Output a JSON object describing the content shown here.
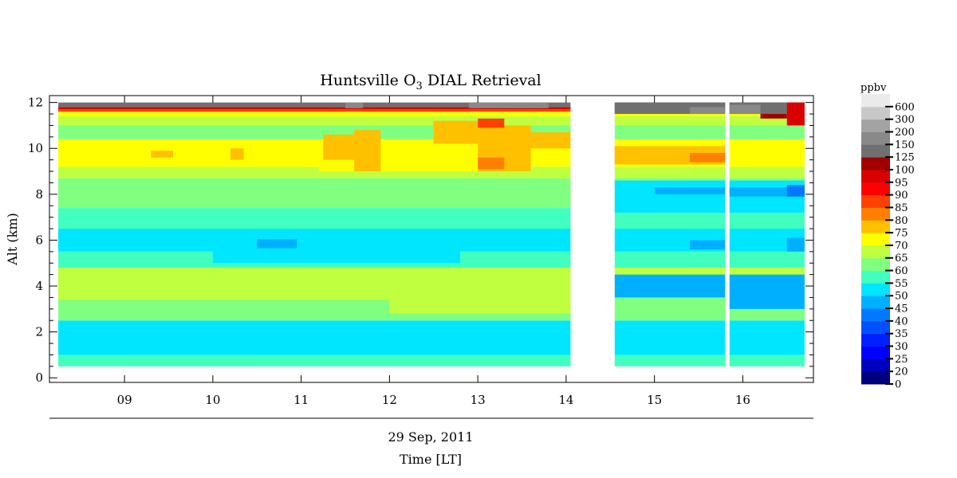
{
  "chart_data": {
    "type": "heatmap",
    "title": {
      "prefix": "Huntsville O",
      "subscript": "3",
      "suffix": " DIAL Retrieval"
    },
    "ylabel": "Alt (km)",
    "xlabel_date": "29 Sep, 2011",
    "xlabel": "Time [LT]",
    "colorbar_unit": "ppbv",
    "xlim": [
      8.15,
      16.8
    ],
    "ylim": [
      -0.2,
      12.3
    ],
    "x_ticks": [
      {
        "value": 9,
        "label": "09"
      },
      {
        "value": 10,
        "label": "10"
      },
      {
        "value": 11,
        "label": "11"
      },
      {
        "value": 12,
        "label": "12"
      },
      {
        "value": 13,
        "label": "13"
      },
      {
        "value": 14,
        "label": "14"
      },
      {
        "value": 15,
        "label": "15"
      },
      {
        "value": 16,
        "label": "16"
      }
    ],
    "y_ticks": [
      {
        "value": 0,
        "label": "0"
      },
      {
        "value": 2,
        "label": "2"
      },
      {
        "value": 4,
        "label": "4"
      },
      {
        "value": 6,
        "label": "6"
      },
      {
        "value": 8,
        "label": "8"
      },
      {
        "value": 10,
        "label": "10"
      },
      {
        "value": 12,
        "label": "12"
      }
    ],
    "colorbar": [
      {
        "level": "0",
        "color": "#00007f"
      },
      {
        "level": "20",
        "color": "#0000bf"
      },
      {
        "level": "25",
        "color": "#0000ff"
      },
      {
        "level": "30",
        "color": "#0020ff"
      },
      {
        "level": "35",
        "color": "#0050ff"
      },
      {
        "level": "40",
        "color": "#0078ff"
      },
      {
        "level": "45",
        "color": "#00b0ff"
      },
      {
        "level": "50",
        "color": "#00e6ff"
      },
      {
        "level": "55",
        "color": "#40ffbf"
      },
      {
        "level": "60",
        "color": "#80ff80"
      },
      {
        "level": "65",
        "color": "#bfff40"
      },
      {
        "level": "70",
        "color": "#ffff00"
      },
      {
        "level": "75",
        "color": "#ffc000"
      },
      {
        "level": "80",
        "color": "#ff8000"
      },
      {
        "level": "85",
        "color": "#ff4000"
      },
      {
        "level": "90",
        "color": "#ff0000"
      },
      {
        "level": "95",
        "color": "#d90000"
      },
      {
        "level": "100",
        "color": "#a00000"
      },
      {
        "level": "125",
        "color": "#707070"
      },
      {
        "level": "150",
        "color": "#898989"
      },
      {
        "level": "200",
        "color": "#a3a3a3"
      },
      {
        "level": "300",
        "color": "#c8c8c8"
      },
      {
        "level": "600",
        "color": "#ebebeb"
      }
    ],
    "top_color": "#505050",
    "data_coverage": {
      "alt_range_km": [
        0.5,
        12
      ],
      "time_segments": [
        [
          8.25,
          14.05
        ],
        [
          14.55,
          15.8
        ],
        [
          15.85,
          16.7
        ]
      ]
    },
    "layers": [
      {
        "bottom": 0.5,
        "top": 1.0,
        "ppbv": 55
      },
      {
        "bottom": 1.0,
        "top": 2.5,
        "ppbv": 50
      },
      {
        "bottom": 2.5,
        "top": 3.5,
        "ppbv": 60
      },
      {
        "bottom": 3.5,
        "top": 4.8,
        "ppbv": 65
      },
      {
        "bottom": 4.8,
        "top": 5.5,
        "ppbv": 55
      },
      {
        "bottom": 5.5,
        "top": 6.5,
        "ppbv": 50
      },
      {
        "bottom": 6.5,
        "top": 7.4,
        "ppbv": 55
      },
      {
        "bottom": 7.4,
        "top": 8.7,
        "ppbv": 60
      },
      {
        "bottom": 8.7,
        "top": 9.2,
        "ppbv": 65
      },
      {
        "bottom": 9.2,
        "top": 10.4,
        "ppbv": 70
      },
      {
        "bottom": 10.4,
        "top": 11.0,
        "ppbv": 60
      },
      {
        "bottom": 11.0,
        "top": 11.4,
        "ppbv": 65
      },
      {
        "bottom": 11.4,
        "top": 11.6,
        "ppbv": 70
      },
      {
        "bottom": 11.6,
        "top": 11.7,
        "ppbv": 85
      },
      {
        "bottom": 11.7,
        "top": 11.8,
        "ppbv": 95
      },
      {
        "bottom": 11.8,
        "top": 12.0,
        "ppbv": 125
      }
    ],
    "patches": [
      {
        "x": [
          9.0,
          10.5
        ],
        "y": [
          1.0,
          2.3
        ],
        "ppbv": 50
      },
      {
        "x": [
          8.25,
          12.0
        ],
        "y": [
          3.4,
          4.8
        ],
        "ppbv": 65
      },
      {
        "x": [
          12.0,
          14.05
        ],
        "y": [
          2.8,
          3.5
        ],
        "ppbv": 65
      },
      {
        "x": [
          10.0,
          12.8
        ],
        "y": [
          5.0,
          6.3
        ],
        "ppbv": 50
      },
      {
        "x": [
          10.5,
          10.95
        ],
        "y": [
          5.65,
          6.05
        ],
        "ppbv": 45
      },
      {
        "x": [
          11.2,
          13.0
        ],
        "y": [
          9.0,
          10.4
        ],
        "ppbv": 70
      },
      {
        "x": [
          11.25,
          11.6
        ],
        "y": [
          9.5,
          10.6
        ],
        "ppbv": 75
      },
      {
        "x": [
          11.6,
          11.9
        ],
        "y": [
          9.0,
          10.8
        ],
        "ppbv": 75
      },
      {
        "x": [
          12.5,
          13.0
        ],
        "y": [
          10.2,
          11.2
        ],
        "ppbv": 75
      },
      {
        "x": [
          13.0,
          13.6
        ],
        "y": [
          9.0,
          11.0
        ],
        "ppbv": 75
      },
      {
        "x": [
          13.0,
          13.3
        ],
        "y": [
          9.1,
          9.6
        ],
        "ppbv": 80
      },
      {
        "x": [
          13.0,
          13.3
        ],
        "y": [
          10.9,
          11.3
        ],
        "ppbv": 85
      },
      {
        "x": [
          13.4,
          14.05
        ],
        "y": [
          10.0,
          10.7
        ],
        "ppbv": 75
      },
      {
        "x": [
          9.3,
          9.55
        ],
        "y": [
          9.6,
          9.9
        ],
        "ppbv": 75
      },
      {
        "x": [
          10.2,
          10.35
        ],
        "y": [
          9.5,
          10.0
        ],
        "ppbv": 75
      },
      {
        "x": [
          14.55,
          15.8
        ],
        "y": [
          3.5,
          4.5
        ],
        "ppbv": 45
      },
      {
        "x": [
          15.85,
          16.7
        ],
        "y": [
          3.0,
          4.5
        ],
        "ppbv": 45
      },
      {
        "x": [
          14.55,
          16.7
        ],
        "y": [
          7.2,
          8.6
        ],
        "ppbv": 50
      },
      {
        "x": [
          15.0,
          15.8
        ],
        "y": [
          8.0,
          8.3
        ],
        "ppbv": 45
      },
      {
        "x": [
          15.85,
          16.7
        ],
        "y": [
          7.9,
          8.3
        ],
        "ppbv": 45
      },
      {
        "x": [
          16.5,
          16.7
        ],
        "y": [
          7.9,
          8.4
        ],
        "ppbv": 40
      },
      {
        "x": [
          15.4,
          15.8
        ],
        "y": [
          5.6,
          6.0
        ],
        "ppbv": 45
      },
      {
        "x": [
          16.5,
          16.7
        ],
        "y": [
          5.5,
          6.1
        ],
        "ppbv": 45
      },
      {
        "x": [
          14.55,
          15.8
        ],
        "y": [
          9.3,
          10.1
        ],
        "ppbv": 75
      },
      {
        "x": [
          15.4,
          15.8
        ],
        "y": [
          9.4,
          9.8
        ],
        "ppbv": 80
      },
      {
        "x": [
          14.55,
          16.7
        ],
        "y": [
          11.5,
          12.0
        ],
        "ppbv": 125
      },
      {
        "x": [
          15.4,
          15.8
        ],
        "y": [
          11.5,
          11.8
        ],
        "ppbv": 150
      },
      {
        "x": [
          15.85,
          16.2
        ],
        "y": [
          11.5,
          11.9
        ],
        "ppbv": 150
      },
      {
        "x": [
          16.2,
          16.5
        ],
        "y": [
          11.3,
          11.5
        ],
        "ppbv": 100
      },
      {
        "x": [
          16.5,
          16.7
        ],
        "y": [
          11.0,
          12.0
        ],
        "ppbv": 95
      },
      {
        "x": [
          11.5,
          11.7
        ],
        "y": [
          11.75,
          12.0
        ],
        "ppbv": 150
      },
      {
        "x": [
          12.9,
          13.8
        ],
        "y": [
          11.75,
          12.0
        ],
        "ppbv": 150
      }
    ]
  }
}
